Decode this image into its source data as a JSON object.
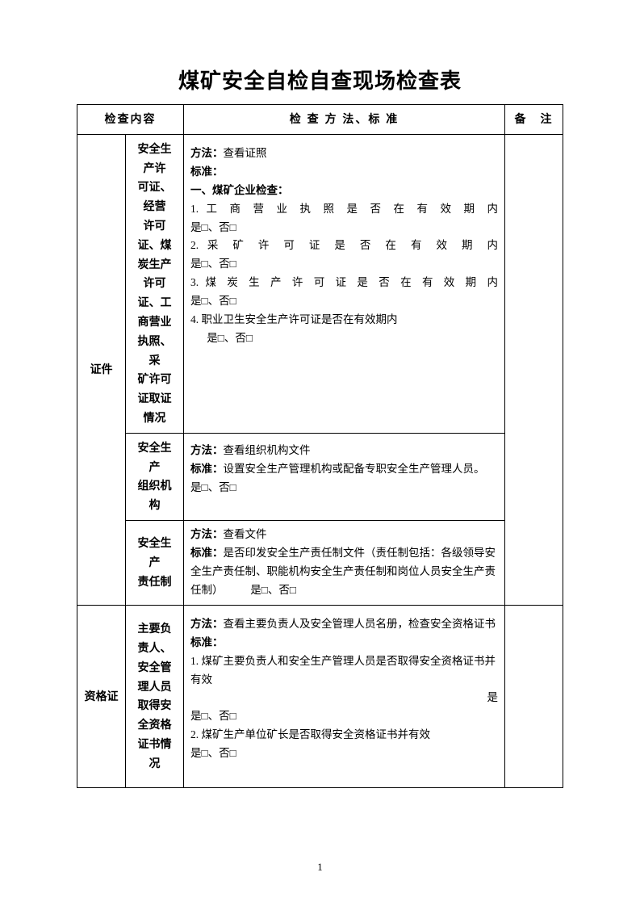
{
  "title": "煤矿安全自检自查现场检查表",
  "headers": {
    "col1_2": "检查内容",
    "col3": "检 查 方 法、标 准",
    "col4": "备　注"
  },
  "rows": [
    {
      "cat": "证件",
      "cat_rowspan": 3,
      "subject": "安全生产许\n可证、经营\n许可证、煤\n炭生产\n许可证、工商营业执照、采\n矿许可证取证情况",
      "method_label": "方法：",
      "method": "查看证照",
      "standard_label": "标准：",
      "heading": "一、煤矿企业检查：",
      "items": [
        {
          "num": "1.",
          "text": "工商营业执照是否在有效期内",
          "just": true,
          "yn": "是□、否□"
        },
        {
          "num": "2.",
          "text": "采矿许可证是否在有效期内",
          "just": true,
          "yn": "是□、否□"
        },
        {
          "num": "3.",
          "text": "煤炭生产许可证是否在有效期内",
          "just": true,
          "yn": "是□、否□"
        },
        {
          "num": "4.",
          "text": "职业卫生安全生产许可证是否在有效期内",
          "just": false,
          "yn_indent": "是□、否□"
        }
      ]
    },
    {
      "subject": "安全生产\n组织机构",
      "method_label": "方法：",
      "method": "查看组织机构文件",
      "standard_label": "标准：",
      "standard_text": "设置安全生产管理机构或配备专职安全生产管理人员。　　　　是□、否□"
    },
    {
      "subject": "安全生产\n责任制",
      "method_label": "方法：",
      "method": "查看文件",
      "standard_label": "标准：",
      "standard_text": "是否印发安全生产责任制文件（责任制包括：各级领导安全生产责任制、职能机构安全生产责任制和岗位人员安全生产责任制）　　　是□、否□"
    },
    {
      "cat": "资格证",
      "cat_rowspan": 1,
      "subject": "主要负责人、安全管理人员取得安全资格证书情况",
      "method_label": "方法：",
      "method": "查看主要负责人及安全管理人员名册，检查安全资格证书",
      "standard_label": "标准：",
      "items2": [
        {
          "num": "1.",
          "text": "煤矿主要负责人和安全生产管理人员是否取得安全资格证书并有效",
          "tail": "是",
          "yn": "是□、否□"
        },
        {
          "num": "2.",
          "text": "煤矿生产单位矿长是否取得安全资格证书并有效",
          "yn": "是□、否□"
        }
      ],
      "bottom_pad": true
    }
  ],
  "page_number": "1"
}
